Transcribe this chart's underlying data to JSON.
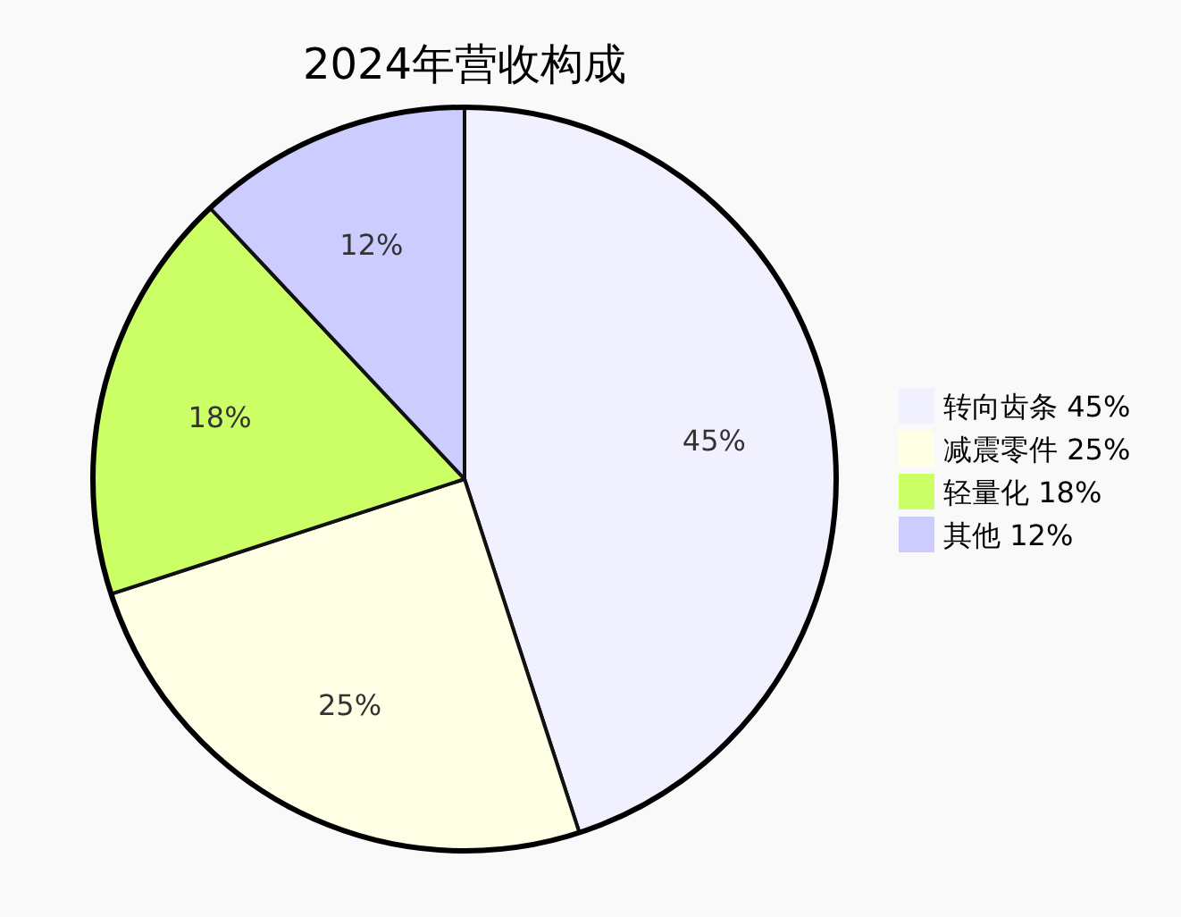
{
  "chart_data": {
    "type": "pie",
    "title": "2024年营收构成",
    "categories": [
      "转向齿条 45%",
      "减震零件 25%",
      "轻量化 18%",
      "其他 12%"
    ],
    "values": [
      45,
      25,
      18,
      12
    ],
    "value_labels": [
      "45%",
      "25%",
      "18%",
      "12%"
    ],
    "colors": [
      "#f0f0ff",
      "#ffffe6",
      "#ccff66",
      "#ccccff"
    ],
    "legend": "right"
  }
}
